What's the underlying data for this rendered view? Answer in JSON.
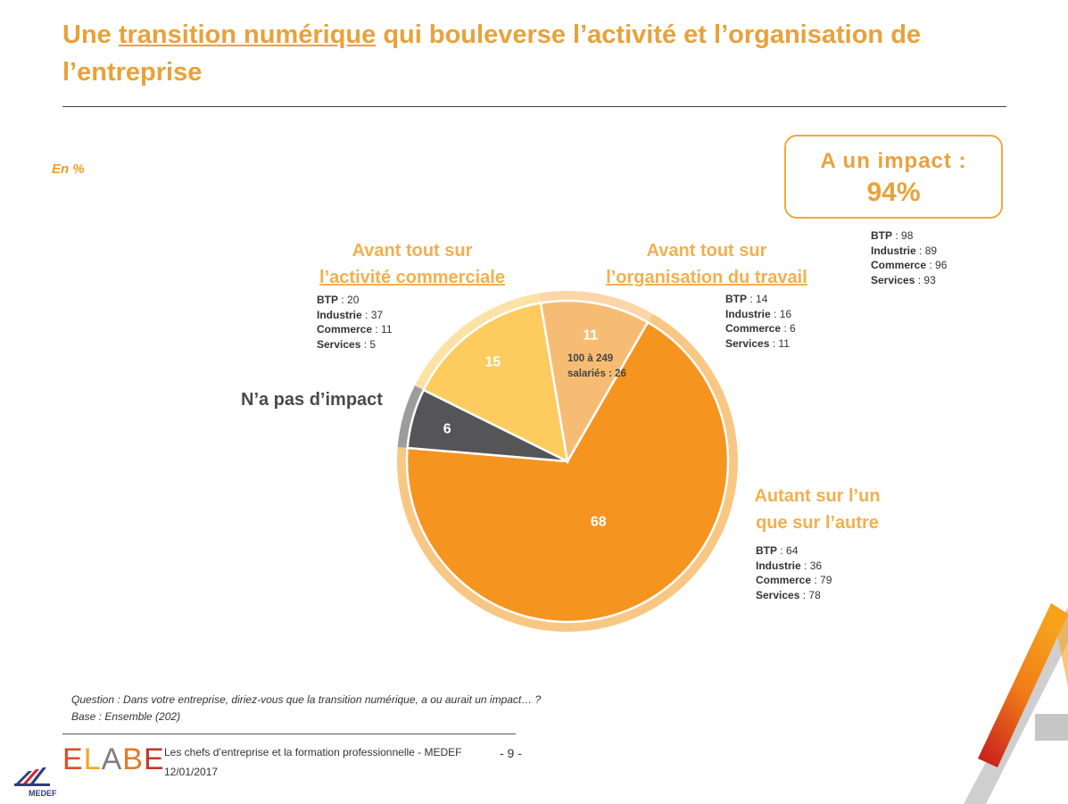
{
  "title": {
    "before": "Une ",
    "underlined": "transition numérique",
    "after": " qui bouleverse l’activité et l’organisation de l’entreprise"
  },
  "unit": "En %",
  "impact": {
    "label": "A un impact :",
    "value": "94%",
    "breakdown": [
      {
        "label": "BTP",
        "value": "98"
      },
      {
        "label": "Industrie",
        "value": "89"
      },
      {
        "label": "Commerce",
        "value": "96"
      },
      {
        "label": "Services",
        "value": "93"
      }
    ]
  },
  "segments": {
    "commercial": {
      "line1": "Avant tout sur",
      "line2": "l’activité commerciale",
      "breakdown": [
        {
          "label": "BTP",
          "value": "20"
        },
        {
          "label": "Industrie",
          "value": "37"
        },
        {
          "label": "Commerce",
          "value": "11"
        },
        {
          "label": "Services",
          "value": "5"
        }
      ]
    },
    "organisation": {
      "line1": "Avant tout sur",
      "line2": "l’organisation du travail",
      "breakdown": [
        {
          "label": "BTP",
          "value": "14"
        },
        {
          "label": "Industrie",
          "value": "16"
        },
        {
          "label": "Commerce",
          "value": "6"
        },
        {
          "label": "Services",
          "value": "11"
        }
      ],
      "inner_note_line1": "100 à 249",
      "inner_note_line2": "salariés : 26"
    },
    "both": {
      "line1": "Autant sur l’un",
      "line2": "que sur l’autre",
      "breakdown": [
        {
          "label": "BTP",
          "value": "64"
        },
        {
          "label": "Industrie",
          "value": "36"
        },
        {
          "label": "Commerce",
          "value": "79"
        },
        {
          "label": "Services",
          "value": "78"
        }
      ]
    },
    "none": {
      "label": "N’a pas d’impact"
    }
  },
  "chart_data": {
    "type": "pie",
    "unit": "%",
    "slices": [
      {
        "label": "Autant sur l’un que sur l’autre",
        "value": 68,
        "color": "#F5941F"
      },
      {
        "label": "N’a pas d’impact",
        "value": 6,
        "color": "#555557"
      },
      {
        "label": "Avant tout sur l’activité commerciale",
        "value": 15,
        "color": "#FDCB5E"
      },
      {
        "label": "Avant tout sur l’organisation du travail",
        "value": 11,
        "color": "#F7BC74"
      }
    ],
    "ring_colors": [
      "#F8C784",
      "#9C9C9C",
      "#FCE2A4",
      "#FAD6A8"
    ]
  },
  "notes": {
    "question": "Question : Dans votre entreprise, diriez-vous que la transition numérique, a ou aurait un impact… ?",
    "base": "Base : Ensemble (202)"
  },
  "footer": {
    "brand_letters": [
      "E",
      "L",
      "A",
      "B",
      "E"
    ],
    "brand_colors": [
      "#D94E2A",
      "#F5A623",
      "#7E7E7E",
      "#E07A2E",
      "#C0392B"
    ],
    "line1": "Les chefs d’entreprise et la formation professionnelle - MEDEF",
    "line2": "12/01/2017",
    "page": "- 9 -",
    "medef": "MEDEF"
  }
}
